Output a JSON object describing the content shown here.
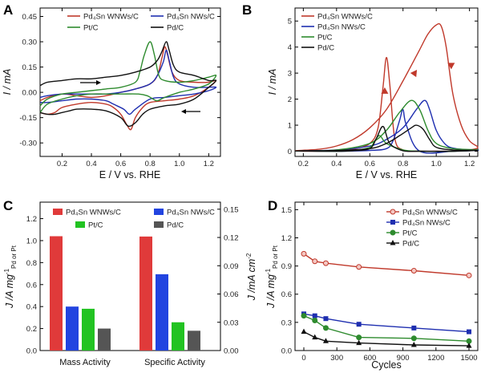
{
  "colors": {
    "pd4sn_wnws": "#c0392b",
    "pd4sn_nws": "#1f2fb0",
    "pt": "#2e8b2e",
    "pd": "#111111",
    "bar_red": "#e03a3a",
    "bar_blue": "#2244e0",
    "bar_green": "#22c322",
    "bar_gray": "#555555"
  },
  "panel_labels": [
    "A",
    "B",
    "C",
    "D"
  ],
  "legend_names": {
    "wnws": "Pd₄Sn WNWs/C",
    "nws": "Pd₄Sn NWs/C",
    "pt": "Pt/C",
    "pd": "Pd/C"
  },
  "chart_data": [
    {
      "type": "line",
      "panel": "A",
      "xlabel": "E / V vs. RHE",
      "ylabel": "I / mA",
      "xlim": [
        0.05,
        1.28
      ],
      "ylim": [
        -0.38,
        0.5
      ],
      "xticks": [
        "0.2",
        "0.4",
        "0.6",
        "0.8",
        "1.0",
        "1.2"
      ],
      "yticks": [
        "-0.30",
        "-0.15",
        "0.00",
        "0.15",
        "0.30",
        "0.45"
      ],
      "legend": "top",
      "series": [
        {
          "name": "Pd₄Sn WNWs/C",
          "color": "#c0392b",
          "x": [
            0.05,
            0.1,
            0.2,
            0.3,
            0.4,
            0.5,
            0.6,
            0.7,
            0.8,
            0.85,
            0.88,
            0.9,
            0.92,
            0.95,
            1.0,
            1.1,
            1.2,
            1.25,
            1.2,
            1.1,
            1.0,
            0.9,
            0.8,
            0.75,
            0.7,
            0.67,
            0.64,
            0.6,
            0.55,
            0.5,
            0.4,
            0.3,
            0.2,
            0.15,
            0.1,
            0.05
          ],
          "y": [
            -0.05,
            -0.03,
            -0.01,
            -0.02,
            -0.03,
            -0.02,
            0.0,
            0.02,
            0.05,
            0.1,
            0.2,
            0.27,
            0.22,
            0.12,
            0.07,
            0.06,
            0.06,
            0.07,
            0.03,
            -0.02,
            -0.04,
            -0.05,
            -0.06,
            -0.09,
            -0.15,
            -0.22,
            -0.19,
            -0.13,
            -0.09,
            -0.07,
            -0.06,
            -0.07,
            -0.09,
            -0.12,
            -0.13,
            -0.12
          ]
        },
        {
          "name": "Pd₄Sn NWs/C",
          "color": "#1f2fb0",
          "x": [
            0.05,
            0.1,
            0.2,
            0.3,
            0.4,
            0.5,
            0.6,
            0.7,
            0.8,
            0.85,
            0.89,
            0.91,
            0.93,
            0.96,
            1.0,
            1.1,
            1.2,
            1.25,
            1.2,
            1.1,
            1.0,
            0.9,
            0.8,
            0.7,
            0.66,
            0.62,
            0.55,
            0.5,
            0.4,
            0.3,
            0.2,
            0.1,
            0.05
          ],
          "y": [
            -0.03,
            -0.02,
            -0.01,
            -0.01,
            -0.01,
            -0.01,
            0.0,
            0.02,
            0.05,
            0.1,
            0.18,
            0.25,
            0.19,
            0.09,
            0.05,
            0.03,
            0.03,
            0.03,
            0.01,
            -0.01,
            -0.02,
            -0.03,
            -0.04,
            -0.1,
            -0.13,
            -0.1,
            -0.07,
            -0.05,
            -0.04,
            -0.04,
            -0.05,
            -0.06,
            -0.06
          ]
        },
        {
          "name": "Pt/C",
          "color": "#2e8b2e",
          "x": [
            0.05,
            0.1,
            0.2,
            0.3,
            0.4,
            0.5,
            0.6,
            0.7,
            0.73,
            0.76,
            0.8,
            0.83,
            0.86,
            0.9,
            1.0,
            1.1,
            1.2,
            1.25,
            1.2,
            1.1,
            1.0,
            0.9,
            0.85,
            0.82,
            0.78,
            0.72,
            0.6,
            0.5,
            0.4,
            0.3,
            0.2,
            0.1,
            0.05
          ],
          "y": [
            -0.08,
            -0.04,
            -0.01,
            0.0,
            0.01,
            0.02,
            0.03,
            0.06,
            0.12,
            0.22,
            0.3,
            0.22,
            0.1,
            0.07,
            0.06,
            0.07,
            0.09,
            0.1,
            0.05,
            0.02,
            0.0,
            -0.03,
            -0.05,
            -0.04,
            -0.02,
            -0.01,
            -0.01,
            -0.01,
            -0.01,
            -0.02,
            -0.04,
            -0.07,
            -0.12
          ]
        },
        {
          "name": "Pd/C",
          "color": "#111111",
          "x": [
            0.05,
            0.1,
            0.2,
            0.3,
            0.4,
            0.5,
            0.6,
            0.7,
            0.8,
            0.85,
            0.88,
            0.91,
            0.93,
            0.96,
            1.0,
            1.1,
            1.2,
            1.25,
            1.2,
            1.1,
            1.0,
            0.9,
            0.8,
            0.75,
            0.7,
            0.65,
            0.6,
            0.5,
            0.4,
            0.3,
            0.25,
            0.2,
            0.15,
            0.1,
            0.05
          ],
          "y": [
            0.04,
            0.06,
            0.07,
            0.08,
            0.08,
            0.09,
            0.1,
            0.12,
            0.15,
            0.19,
            0.24,
            0.3,
            0.25,
            0.16,
            0.12,
            0.1,
            0.07,
            0.07,
            0.03,
            -0.04,
            -0.07,
            -0.08,
            -0.1,
            -0.13,
            -0.18,
            -0.2,
            -0.15,
            -0.11,
            -0.1,
            -0.1,
            -0.11,
            -0.12,
            -0.13,
            -0.13,
            -0.12
          ]
        }
      ]
    },
    {
      "type": "line",
      "panel": "B",
      "xlabel": "E / V vs. RHE",
      "ylabel": "I / mA",
      "xlim": [
        0.15,
        1.25
      ],
      "ylim": [
        -0.2,
        5.5
      ],
      "xticks": [
        "0.2",
        "0.4",
        "0.6",
        "0.8",
        "1.0",
        "1.2"
      ],
      "yticks": [
        "0",
        "1",
        "2",
        "3",
        "4",
        "5"
      ],
      "legend": "top-left",
      "series": [
        {
          "name": "Pd₄Sn WNWs/C",
          "color": "#c0392b",
          "x": [
            0.15,
            0.3,
            0.4,
            0.5,
            0.6,
            0.7,
            0.8,
            0.9,
            0.95,
            1.0,
            1.03,
            1.06,
            1.1,
            1.15,
            1.2,
            1.25,
            1.2,
            1.1,
            1.0,
            0.9,
            0.8,
            0.75,
            0.72,
            0.7,
            0.68,
            0.65,
            0.6,
            0.5,
            0.4,
            0.3,
            0.2,
            0.15
          ],
          "y": [
            0.02,
            0.08,
            0.2,
            0.45,
            0.9,
            1.6,
            2.7,
            3.9,
            4.5,
            4.85,
            4.8,
            4.0,
            2.2,
            1.0,
            0.4,
            0.15,
            0.05,
            0.0,
            0.0,
            0.0,
            0.05,
            0.5,
            2.6,
            3.6,
            2.5,
            0.9,
            0.3,
            0.08,
            0.02,
            0.0,
            0.0,
            0.02
          ]
        },
        {
          "name": "Pd₄Sn NWs/C",
          "color": "#1f2fb0",
          "x": [
            0.15,
            0.4,
            0.6,
            0.7,
            0.8,
            0.88,
            0.93,
            0.96,
            1.0,
            1.05,
            1.1,
            1.2,
            1.25,
            1.1,
            0.9,
            0.82,
            0.8,
            0.78,
            0.74,
            0.7,
            0.6,
            0.4,
            0.15
          ],
          "y": [
            0.01,
            0.05,
            0.2,
            0.45,
            0.9,
            1.6,
            1.95,
            1.6,
            0.8,
            0.3,
            0.12,
            0.05,
            0.04,
            0.0,
            0.0,
            1.0,
            1.6,
            1.2,
            0.4,
            0.1,
            0.03,
            0.0,
            0.01
          ]
        },
        {
          "name": "Pt/C",
          "color": "#2e8b2e",
          "x": [
            0.15,
            0.4,
            0.6,
            0.7,
            0.78,
            0.85,
            0.9,
            0.95,
            1.0,
            1.1,
            1.25,
            1.1,
            0.9,
            0.8,
            0.7,
            0.66,
            0.63,
            0.6,
            0.5,
            0.4,
            0.15
          ],
          "y": [
            0.01,
            0.05,
            0.3,
            0.8,
            1.5,
            1.95,
            1.6,
            0.8,
            0.3,
            0.1,
            0.05,
            0.0,
            0.0,
            0.05,
            0.3,
            0.6,
            0.4,
            0.15,
            0.03,
            0.0,
            0.01
          ]
        },
        {
          "name": "Pd/C",
          "color": "#111111",
          "x": [
            0.15,
            0.4,
            0.6,
            0.7,
            0.78,
            0.85,
            0.88,
            0.92,
            0.96,
            1.0,
            1.1,
            1.25,
            1.1,
            0.9,
            0.8,
            0.72,
            0.68,
            0.64,
            0.6,
            0.5,
            0.4,
            0.15
          ],
          "y": [
            0.01,
            0.03,
            0.1,
            0.3,
            0.6,
            0.9,
            1.0,
            0.85,
            0.45,
            0.15,
            0.05,
            0.03,
            0.0,
            0.0,
            0.02,
            0.3,
            0.95,
            0.5,
            0.1,
            0.02,
            0.0,
            0.01
          ]
        }
      ]
    },
    {
      "type": "bar",
      "panel": "C",
      "categories": [
        "Mass Activity",
        "Specific Activity"
      ],
      "ylabel_left": "J /A mg",
      "ylabel_left_sup": "-1",
      "ylabel_left_sub": "Pd or Pt",
      "ylabel_right": "J /mA cm",
      "ylabel_right_sup": "-2",
      "ylim_left": [
        0,
        1.35
      ],
      "ylim_right": [
        0,
        0.1575
      ],
      "yticks_left": [
        "0.0",
        "0.2",
        "0.4",
        "0.6",
        "0.8",
        "1.0",
        "1.2"
      ],
      "yticks_right": [
        "0.00",
        "0.03",
        "0.06",
        "0.09",
        "0.12",
        "0.15"
      ],
      "legend": "top",
      "series": [
        {
          "name": "Pd₄Sn WNWs/C",
          "color": "#e03a3a",
          "values": [
            1.04,
            0.121
          ]
        },
        {
          "name": "Pd₄Sn NWs/C",
          "color": "#2244e0",
          "values": [
            0.4,
            0.081
          ]
        },
        {
          "name": "Pt/C",
          "color": "#22c322",
          "values": [
            0.38,
            0.03
          ]
        },
        {
          "name": "Pd/C",
          "color": "#555555",
          "values": [
            0.2,
            0.021
          ]
        }
      ]
    },
    {
      "type": "line",
      "panel": "D",
      "xlabel": "Cycles",
      "ylabel": "J /A mg",
      "ylabel_sup": "-1",
      "ylabel_sub": "Pd or Pt",
      "xlim": [
        -80,
        1580
      ],
      "ylim": [
        0.0,
        1.58
      ],
      "xticks": [
        "0",
        "300",
        "600",
        "900",
        "1200",
        "1500"
      ],
      "yticks": [
        "0.0",
        "0.3",
        "0.6",
        "0.9",
        "1.2",
        "1.5"
      ],
      "legend": "top-right",
      "series": [
        {
          "name": "Pd₄Sn WNWs/C",
          "color": "#c0392b",
          "marker": "circle",
          "x": [
            0,
            100,
            200,
            500,
            1000,
            1500
          ],
          "y": [
            1.03,
            0.95,
            0.93,
            0.89,
            0.85,
            0.8
          ]
        },
        {
          "name": "Pd₄Sn NWs/C",
          "color": "#1f2fb0",
          "marker": "square",
          "x": [
            0,
            100,
            200,
            500,
            1000,
            1500
          ],
          "y": [
            0.39,
            0.37,
            0.34,
            0.28,
            0.24,
            0.2
          ]
        },
        {
          "name": "Pt/C",
          "color": "#2e8b2e",
          "marker": "circle",
          "x": [
            0,
            100,
            200,
            500,
            1000,
            1500
          ],
          "y": [
            0.37,
            0.32,
            0.24,
            0.14,
            0.13,
            0.1
          ]
        },
        {
          "name": "Pd/C",
          "color": "#111111",
          "marker": "triangle",
          "x": [
            0,
            100,
            200,
            500,
            1000,
            1500
          ],
          "y": [
            0.2,
            0.14,
            0.1,
            0.08,
            0.06,
            0.05
          ]
        }
      ]
    }
  ]
}
